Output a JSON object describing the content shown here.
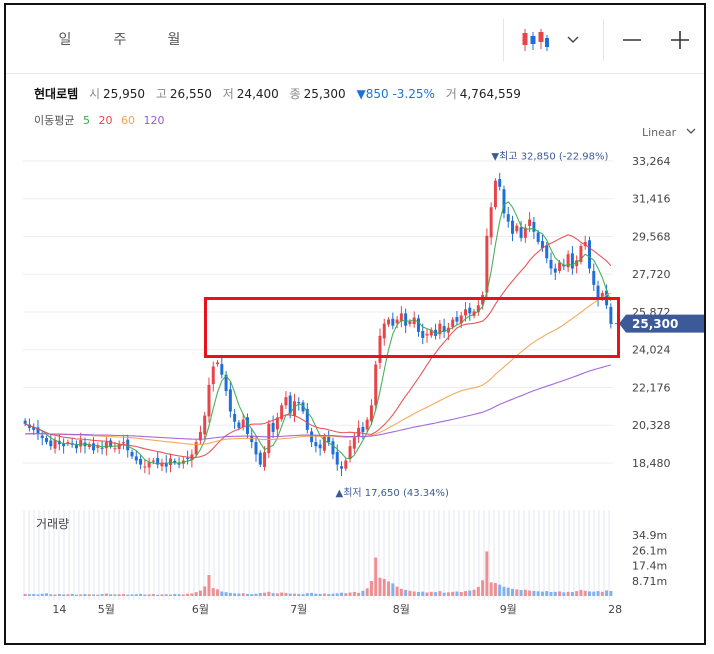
{
  "tabs": [
    {
      "label": "일",
      "active": true
    },
    {
      "label": "주",
      "active": false
    },
    {
      "label": "월",
      "active": false
    }
  ],
  "toolbar": {
    "chart_type_icon": "candlestick-icon",
    "dropdown_icon": "chevron-down-icon",
    "minimize_icon": "minus-icon",
    "add_icon": "plus-icon"
  },
  "stock": {
    "name": "현대로템",
    "open_label": "시",
    "open": "25,950",
    "high_label": "고",
    "high": "26,550",
    "low_label": "저",
    "low": "24,400",
    "close_label": "종",
    "close": "25,300",
    "change": "▼850 -3.25%",
    "volume_label": "거",
    "volume": "4,764,559"
  },
  "moving_average": {
    "label": "이동평균",
    "periods": [
      "5",
      "20",
      "60",
      "120"
    ],
    "colors": [
      "#38a848",
      "#e8454a",
      "#f2a24b",
      "#9b59d6"
    ]
  },
  "scale": {
    "label": "Linear"
  },
  "colors": {
    "up": "#e8454a",
    "down": "#1e6fd9",
    "price_tag": "#3d5a98",
    "highlight": "#e8121c"
  },
  "annotations": {
    "high_text": "▼최고 32,850 (-22.98%)",
    "low_text": "▲최저 17,650 (43.34%)",
    "price_tag": "25,300"
  },
  "volume": {
    "title": "거래량",
    "ticks": [
      "34.9m",
      "26.1m",
      "17.4m",
      "8.71m"
    ]
  },
  "chart_data": {
    "type": "candlestick",
    "y_ticks": [
      "33,264",
      "31,416",
      "29,568",
      "27,720",
      "25,872",
      "24,024",
      "22,176",
      "20,328",
      "18,480"
    ],
    "ylim": [
      17400,
      33900
    ],
    "x_labels": [
      {
        "label": "14",
        "index": 8
      },
      {
        "label": "5월",
        "index": 19
      },
      {
        "label": "6월",
        "index": 41
      },
      {
        "label": "7월",
        "index": 64
      },
      {
        "label": "8월",
        "index": 88
      },
      {
        "label": "9월",
        "index": 113
      },
      {
        "label": "28",
        "index": 138
      }
    ],
    "high": 32850,
    "low": 17650,
    "last_close": 25300,
    "ohlc_close": [
      20400,
      20200,
      20100,
      19900,
      19700,
      19500,
      19300,
      19600,
      19400,
      19300,
      19500,
      19400,
      19200,
      19600,
      19300,
      19400,
      19100,
      19300,
      19200,
      19500,
      19300,
      19200,
      19400,
      19500,
      19100,
      18800,
      18600,
      18400,
      18300,
      18500,
      18600,
      18400,
      18500,
      18300,
      18700,
      18500,
      18400,
      18600,
      18700,
      18900,
      19500,
      20000,
      20800,
      22300,
      23200,
      23400,
      22800,
      22000,
      21000,
      20500,
      20200,
      20600,
      19900,
      19500,
      18900,
      18400,
      19000,
      20400,
      20000,
      20700,
      21300,
      21700,
      20900,
      21500,
      21400,
      21000,
      20100,
      19500,
      19300,
      19200,
      19800,
      19500,
      18900,
      18400,
      18200,
      18600,
      19300,
      19800,
      20200,
      20000,
      20600,
      21300,
      23300,
      24700,
      25300,
      25500,
      25200,
      25500,
      25800,
      25200,
      25400,
      25600,
      24900,
      24600,
      24800,
      25000,
      24700,
      25300,
      24900,
      25100,
      25500,
      25400,
      25700,
      26000,
      25800,
      25900,
      26200,
      26700,
      29600,
      31000,
      32300,
      32000,
      30700,
      30300,
      29700,
      30100,
      29500,
      30000,
      30400,
      29800,
      29300,
      29000,
      28500,
      28000,
      27800,
      28300,
      28100,
      28700,
      28000,
      28400,
      29100,
      29300,
      28000,
      27200,
      26500,
      26800,
      26200,
      25300
    ],
    "volume_values": [
      1.2,
      1.0,
      1.1,
      0.9,
      1.3,
      1.5,
      1.0,
      0.8,
      1.1,
      0.9,
      1.0,
      1.2,
      0.8,
      0.9,
      1.1,
      1.0,
      0.9,
      0.8,
      1.1,
      1.4,
      1.0,
      0.9,
      1.0,
      1.1,
      0.8,
      0.9,
      1.0,
      1.2,
      0.8,
      0.9,
      1.1,
      0.7,
      0.9,
      1.0,
      0.8,
      1.1,
      1.0,
      0.9,
      1.3,
      1.5,
      2.2,
      3.1,
      5.5,
      12.0,
      4.5,
      3.8,
      2.6,
      2.2,
      1.8,
      1.5,
      1.4,
      1.6,
      1.2,
      1.1,
      1.3,
      1.7,
      1.9,
      2.4,
      1.6,
      1.5,
      2.0,
      1.8,
      1.4,
      1.3,
      1.2,
      1.1,
      1.6,
      1.8,
      1.3,
      1.2,
      1.4,
      1.1,
      1.3,
      1.5,
      1.9,
      1.6,
      2.0,
      2.3,
      1.8,
      3.0,
      4.4,
      8.6,
      22.0,
      10.5,
      9.8,
      8.3,
      7.2,
      5.4,
      4.1,
      3.5,
      3.0,
      2.6,
      2.3,
      2.5,
      2.0,
      2.4,
      2.2,
      2.8,
      1.9,
      2.1,
      2.4,
      2.6,
      2.3,
      2.8,
      3.1,
      3.6,
      5.2,
      9.0,
      25.5,
      7.8,
      7.4,
      6.5,
      5.3,
      4.8,
      4.1,
      3.8,
      3.4,
      3.6,
      3.1,
      2.9,
      2.7,
      2.5,
      2.8,
      2.3,
      2.4,
      2.6,
      2.1,
      2.4,
      2.3,
      2.8,
      3.5,
      3.0,
      2.6,
      2.5,
      2.8,
      2.4,
      3.2,
      2.9
    ]
  }
}
